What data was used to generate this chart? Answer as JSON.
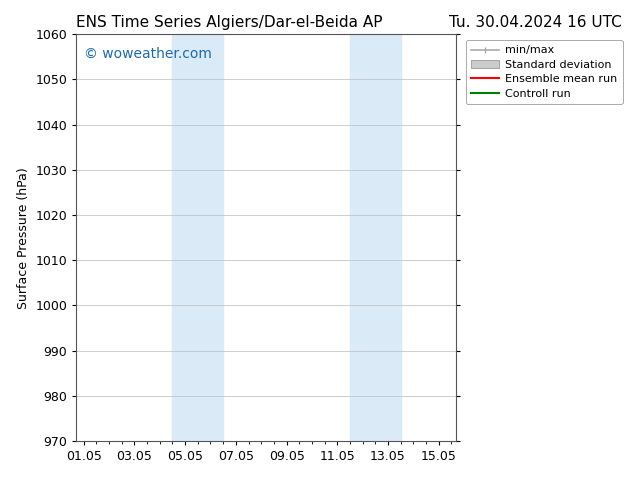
{
  "title_left": "ENS Time Series Algiers/Dar-el-Beida AP",
  "title_right": "Tu. 30.04.2024 16 UTC",
  "ylabel": "Surface Pressure (hPa)",
  "xlabel": "",
  "ylim": [
    970,
    1060
  ],
  "yticks": [
    970,
    980,
    990,
    1000,
    1010,
    1020,
    1030,
    1040,
    1050,
    1060
  ],
  "xtick_labels": [
    "01.05",
    "03.05",
    "05.05",
    "07.05",
    "09.05",
    "11.05",
    "13.05",
    "15.05"
  ],
  "xtick_positions": [
    0,
    2,
    4,
    6,
    8,
    10,
    12,
    14
  ],
  "xmin": -0.3,
  "xmax": 14.7,
  "shaded_bands": [
    {
      "x_start": 3.5,
      "x_end": 5.5,
      "color": "#daeaf7"
    },
    {
      "x_start": 10.5,
      "x_end": 12.5,
      "color": "#daeaf7"
    }
  ],
  "watermark_text": "© woweather.com",
  "watermark_color": "#1a6ab5",
  "watermark_fontsize": 10,
  "legend_items": [
    {
      "label": "min/max",
      "color": "#aaaaaa",
      "type": "line_ticked"
    },
    {
      "label": "Standard deviation",
      "color": "#cccccc",
      "type": "patch"
    },
    {
      "label": "Ensemble mean run",
      "color": "#ff0000",
      "type": "line"
    },
    {
      "label": "Controll run",
      "color": "#008000",
      "type": "line"
    }
  ],
  "bg_color": "#ffffff",
  "grid_color": "#bbbbbb",
  "title_fontsize": 11,
  "axis_fontsize": 9,
  "tick_fontsize": 9,
  "legend_fontsize": 8
}
